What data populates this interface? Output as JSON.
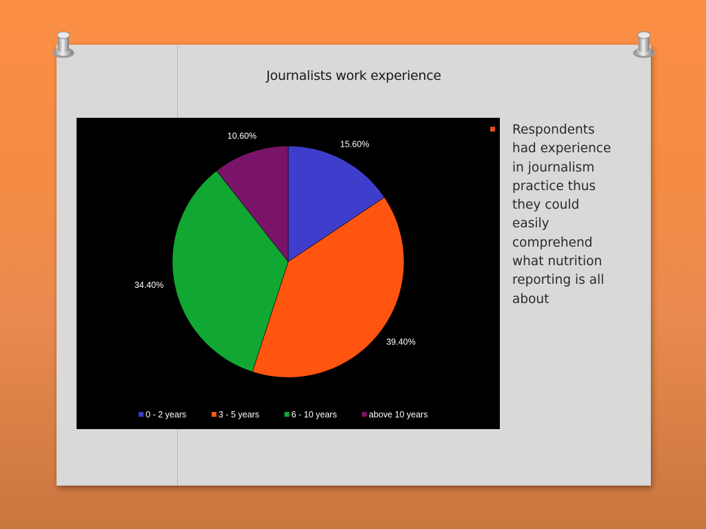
{
  "slide": {
    "title": "Journalists  work experience",
    "side_text": "Respondents had experience in journalism practice thus they could easily comprehend what nutrition reporting is all about",
    "colors": {
      "background": "#fb8f44",
      "board": "#d9d9d9",
      "bullet": "#e0501d"
    }
  },
  "chart_data": {
    "type": "pie",
    "title": "",
    "categories": [
      "0 - 2 years",
      "3 - 5 years",
      "6 - 10 years",
      "above 10 years"
    ],
    "values": [
      15.6,
      39.4,
      34.4,
      10.6
    ],
    "labels": [
      "15.60%",
      "39.40%",
      "34.40%",
      "10.60%"
    ],
    "colors": [
      "#3f3dcb",
      "#ff5511",
      "#10a832",
      "#7a1468"
    ],
    "legend_position": "bottom",
    "start_angle_deg": 0,
    "direction": "clockwise"
  }
}
